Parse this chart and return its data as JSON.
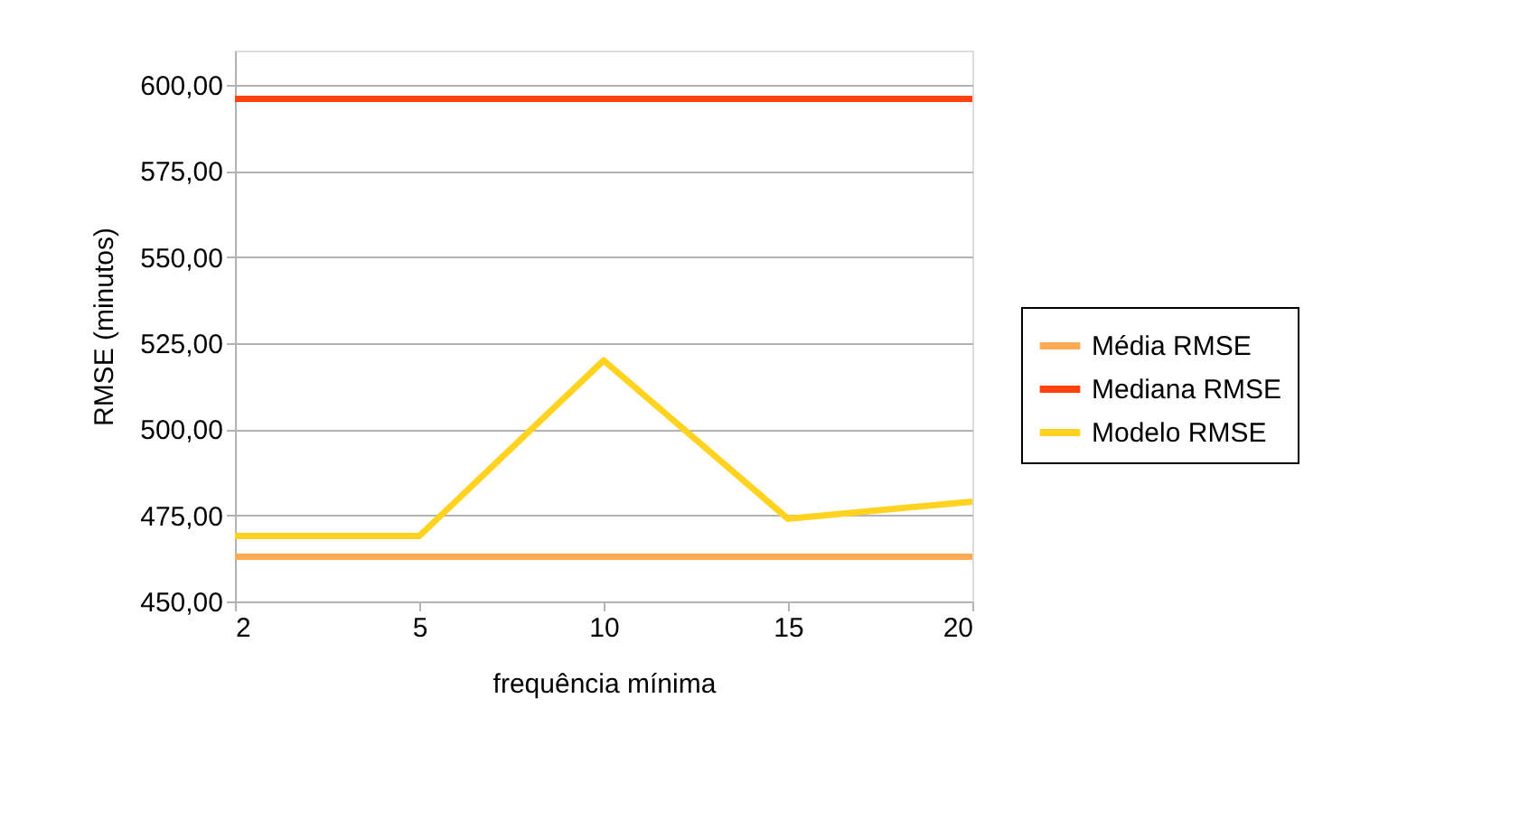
{
  "chart_data": {
    "type": "line",
    "xlabel": "frequência mínima",
    "ylabel": "RMSE (minutos)",
    "categories": [
      "2",
      "5",
      "10",
      "15",
      "20"
    ],
    "series": [
      {
        "name": "Média RMSE",
        "color": "#ffaa55",
        "values": [
          463,
          463,
          463,
          463,
          463
        ]
      },
      {
        "name": "Mediana RMSE",
        "color": "#ff420e",
        "values": [
          596,
          596,
          596,
          596,
          596
        ]
      },
      {
        "name": "Modelo RMSE",
        "color": "#ffd320",
        "values": [
          469,
          469,
          520,
          474,
          479
        ]
      }
    ],
    "ylim": [
      450,
      610
    ],
    "yticks": [
      {
        "value": 450,
        "label": "450,00"
      },
      {
        "value": 475,
        "label": "475,00"
      },
      {
        "value": 500,
        "label": "500,00"
      },
      {
        "value": 525,
        "label": "525,00"
      },
      {
        "value": 550,
        "label": "550,00"
      },
      {
        "value": 575,
        "label": "575,00"
      },
      {
        "value": 600,
        "label": "600,00"
      }
    ],
    "grid": "y",
    "legend": "right",
    "marker": "none",
    "line_style": "solid"
  }
}
